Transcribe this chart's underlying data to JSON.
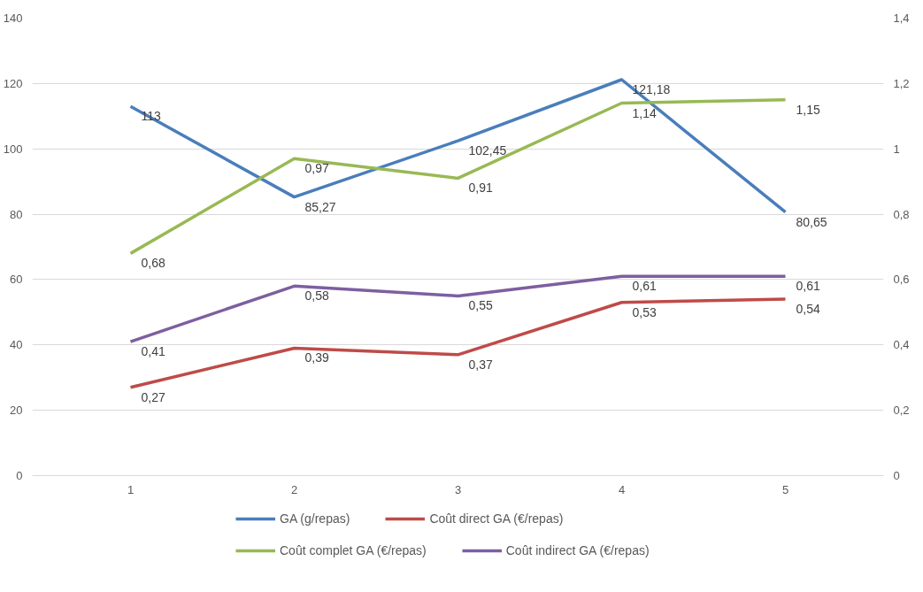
{
  "chart_data": {
    "type": "line",
    "categories": [
      "1",
      "2",
      "3",
      "4",
      "5"
    ],
    "ylim": [
      0,
      140
    ],
    "yticks": [
      0,
      20,
      40,
      60,
      80,
      100,
      120,
      140
    ],
    "y2lim": [
      0,
      1.4
    ],
    "y2ticks": [
      {
        "value": 0,
        "label": "0"
      },
      {
        "value": 0.2,
        "label": "0,2"
      },
      {
        "value": 0.4,
        "label": "0,4"
      },
      {
        "value": 0.6,
        "label": "0,6"
      },
      {
        "value": 0.8,
        "label": "0,8"
      },
      {
        "value": 1,
        "label": "1"
      },
      {
        "value": 1.2,
        "label": "1,2"
      },
      {
        "value": 1.4,
        "label": "1,4"
      }
    ],
    "grid": "y",
    "legend": "bottom",
    "marker": "none",
    "line_style": "solid",
    "series": [
      {
        "name": "GA (g/repas)",
        "color": "#4a7ebb",
        "values": [
          113,
          85.27,
          102.45,
          121.18,
          80.65
        ],
        "value_labels": [
          "113",
          "85,27",
          "102,45",
          "121,18",
          "80,65"
        ]
      },
      {
        "name": "Coût direct GA (€/repas)",
        "color": "#be4b48",
        "axis": "y2",
        "values": [
          0.27,
          0.39,
          0.37,
          0.53,
          0.54
        ],
        "value_labels": [
          "0,27",
          "0,39",
          "0,37",
          "0,53",
          "0,54"
        ]
      },
      {
        "name": "Coût complet GA (€/repas)",
        "color": "#98b954",
        "axis": "y2",
        "values": [
          0.68,
          0.97,
          0.91,
          1.14,
          1.15
        ],
        "value_labels": [
          "0,68",
          "0,97",
          "0,91",
          "1,14",
          "1,15"
        ]
      },
      {
        "name": "Coût indirect GA (€/repas)",
        "color": "#7d5fa0",
        "axis": "y2",
        "values": [
          0.41,
          0.58,
          0.55,
          0.61,
          0.61
        ],
        "value_labels": [
          "0,41",
          "0,58",
          "0,55",
          "0,61",
          "0,61"
        ]
      }
    ]
  }
}
